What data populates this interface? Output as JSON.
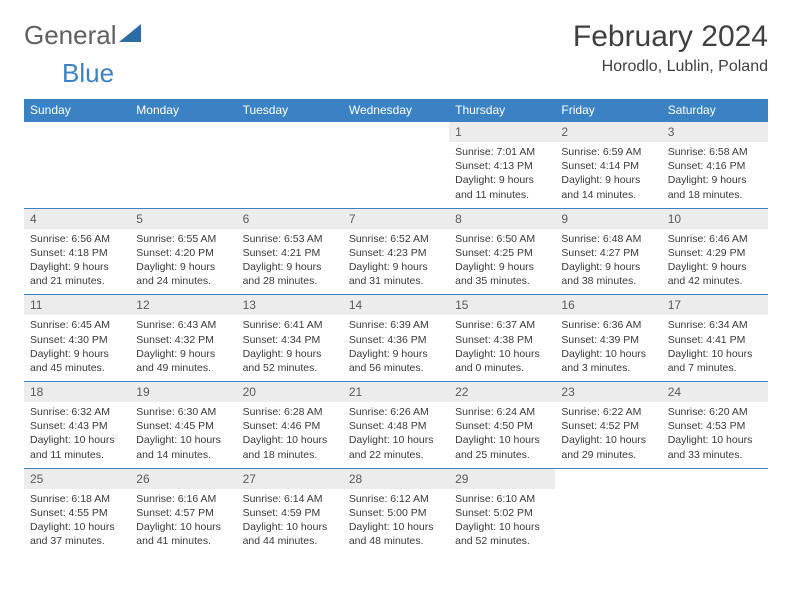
{
  "logo": {
    "part1": "General",
    "part2": "Blue"
  },
  "title": "February 2024",
  "location": "Horodlo, Lublin, Poland",
  "colors": {
    "header_bg": "#3a82c4",
    "header_text": "#ffffff",
    "daynum_bg": "#ececec",
    "daynum_text": "#5a5a5a",
    "body_text": "#3a3a3a",
    "rule": "#3a82c4",
    "logo_gray": "#606060",
    "logo_blue": "#3a82c4"
  },
  "typography": {
    "title_fontsize": 30,
    "location_fontsize": 16,
    "dayhead_fontsize": 12,
    "cell_fontsize": 10.5
  },
  "day_headers": [
    "Sunday",
    "Monday",
    "Tuesday",
    "Wednesday",
    "Thursday",
    "Friday",
    "Saturday"
  ],
  "weeks": [
    [
      null,
      null,
      null,
      null,
      {
        "n": "1",
        "sunrise": "7:01 AM",
        "sunset": "4:13 PM",
        "daylight": "9 hours and 11 minutes."
      },
      {
        "n": "2",
        "sunrise": "6:59 AM",
        "sunset": "4:14 PM",
        "daylight": "9 hours and 14 minutes."
      },
      {
        "n": "3",
        "sunrise": "6:58 AM",
        "sunset": "4:16 PM",
        "daylight": "9 hours and 18 minutes."
      }
    ],
    [
      {
        "n": "4",
        "sunrise": "6:56 AM",
        "sunset": "4:18 PM",
        "daylight": "9 hours and 21 minutes."
      },
      {
        "n": "5",
        "sunrise": "6:55 AM",
        "sunset": "4:20 PM",
        "daylight": "9 hours and 24 minutes."
      },
      {
        "n": "6",
        "sunrise": "6:53 AM",
        "sunset": "4:21 PM",
        "daylight": "9 hours and 28 minutes."
      },
      {
        "n": "7",
        "sunrise": "6:52 AM",
        "sunset": "4:23 PM",
        "daylight": "9 hours and 31 minutes."
      },
      {
        "n": "8",
        "sunrise": "6:50 AM",
        "sunset": "4:25 PM",
        "daylight": "9 hours and 35 minutes."
      },
      {
        "n": "9",
        "sunrise": "6:48 AM",
        "sunset": "4:27 PM",
        "daylight": "9 hours and 38 minutes."
      },
      {
        "n": "10",
        "sunrise": "6:46 AM",
        "sunset": "4:29 PM",
        "daylight": "9 hours and 42 minutes."
      }
    ],
    [
      {
        "n": "11",
        "sunrise": "6:45 AM",
        "sunset": "4:30 PM",
        "daylight": "9 hours and 45 minutes."
      },
      {
        "n": "12",
        "sunrise": "6:43 AM",
        "sunset": "4:32 PM",
        "daylight": "9 hours and 49 minutes."
      },
      {
        "n": "13",
        "sunrise": "6:41 AM",
        "sunset": "4:34 PM",
        "daylight": "9 hours and 52 minutes."
      },
      {
        "n": "14",
        "sunrise": "6:39 AM",
        "sunset": "4:36 PM",
        "daylight": "9 hours and 56 minutes."
      },
      {
        "n": "15",
        "sunrise": "6:37 AM",
        "sunset": "4:38 PM",
        "daylight": "10 hours and 0 minutes."
      },
      {
        "n": "16",
        "sunrise": "6:36 AM",
        "sunset": "4:39 PM",
        "daylight": "10 hours and 3 minutes."
      },
      {
        "n": "17",
        "sunrise": "6:34 AM",
        "sunset": "4:41 PM",
        "daylight": "10 hours and 7 minutes."
      }
    ],
    [
      {
        "n": "18",
        "sunrise": "6:32 AM",
        "sunset": "4:43 PM",
        "daylight": "10 hours and 11 minutes."
      },
      {
        "n": "19",
        "sunrise": "6:30 AM",
        "sunset": "4:45 PM",
        "daylight": "10 hours and 14 minutes."
      },
      {
        "n": "20",
        "sunrise": "6:28 AM",
        "sunset": "4:46 PM",
        "daylight": "10 hours and 18 minutes."
      },
      {
        "n": "21",
        "sunrise": "6:26 AM",
        "sunset": "4:48 PM",
        "daylight": "10 hours and 22 minutes."
      },
      {
        "n": "22",
        "sunrise": "6:24 AM",
        "sunset": "4:50 PM",
        "daylight": "10 hours and 25 minutes."
      },
      {
        "n": "23",
        "sunrise": "6:22 AM",
        "sunset": "4:52 PM",
        "daylight": "10 hours and 29 minutes."
      },
      {
        "n": "24",
        "sunrise": "6:20 AM",
        "sunset": "4:53 PM",
        "daylight": "10 hours and 33 minutes."
      }
    ],
    [
      {
        "n": "25",
        "sunrise": "6:18 AM",
        "sunset": "4:55 PM",
        "daylight": "10 hours and 37 minutes."
      },
      {
        "n": "26",
        "sunrise": "6:16 AM",
        "sunset": "4:57 PM",
        "daylight": "10 hours and 41 minutes."
      },
      {
        "n": "27",
        "sunrise": "6:14 AM",
        "sunset": "4:59 PM",
        "daylight": "10 hours and 44 minutes."
      },
      {
        "n": "28",
        "sunrise": "6:12 AM",
        "sunset": "5:00 PM",
        "daylight": "10 hours and 48 minutes."
      },
      {
        "n": "29",
        "sunrise": "6:10 AM",
        "sunset": "5:02 PM",
        "daylight": "10 hours and 52 minutes."
      },
      null,
      null
    ]
  ],
  "labels": {
    "sunrise": "Sunrise:",
    "sunset": "Sunset:",
    "daylight": "Daylight:"
  }
}
